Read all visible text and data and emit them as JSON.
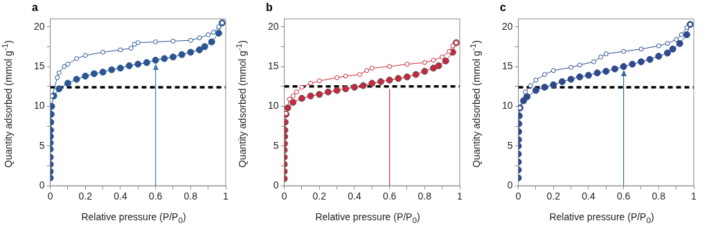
{
  "chart_data": [
    {
      "type": "line",
      "title": "a",
      "xlabel": "Relative pressure (P/P$_{0}$)",
      "ylabel": "Quantity adsorbed (mmol g$^{-1}$)",
      "xlim": [
        0,
        1
      ],
      "ylim": [
        0,
        21
      ],
      "xticks": [
        0,
        {
          "value": 0.1,
          "label": null
        },
        0.2,
        {
          "value": 0.3,
          "label": null
        },
        0.4,
        {
          "value": 0.5,
          "label": null
        },
        0.6,
        {
          "value": 0.7,
          "label": null
        },
        0.8,
        {
          "value": 0.9,
          "label": null
        },
        1
      ],
      "yticks": [
        0,
        {
          "value": 2.5,
          "label": null
        },
        5,
        {
          "value": 7.5,
          "label": null
        },
        10,
        {
          "value": 12.5,
          "label": null
        },
        15,
        {
          "value": 17.5,
          "label": null
        },
        20
      ],
      "marker": "circle",
      "grid": false,
      "legend": false,
      "ref_lines": [
        {
          "axis": "y",
          "value": 12.4,
          "color": "#000000",
          "line_style": "dashed"
        },
        {
          "axis": "x",
          "value": 0.6,
          "color": "#3a7ab8"
        }
      ],
      "series": [
        {
          "color": "#2a5592",
          "x": [
            0,
            0,
            0,
            0,
            0,
            0,
            0.001,
            0.002,
            0.003,
            0.005,
            0.008,
            0.02,
            0.05,
            0.1,
            0.15,
            0.2,
            0.25,
            0.3,
            0.35,
            0.4,
            0.45,
            0.5,
            0.55,
            0.6,
            0.65,
            0.7,
            0.75,
            0.8,
            0.85,
            0.88,
            0.92,
            0.96,
            0.98
          ],
          "values": [
            1,
            1.8,
            2.7,
            3.6,
            4.6,
            5.4,
            6.2,
            7,
            8,
            9,
            10,
            11.3,
            12.2,
            12.9,
            13.4,
            13.8,
            14.1,
            14.3,
            14.6,
            14.8,
            15.1,
            15.3,
            15.5,
            15.8,
            16,
            16.2,
            16.5,
            16.8,
            17.1,
            17.5,
            18.1,
            19.2,
            20.5
          ]
        },
        {
          "color": "#2a5592",
          "x": [
            0.98,
            0.96,
            0.93,
            0.9,
            0.85,
            0.8,
            0.7,
            0.6,
            0.5,
            0.48,
            0.46,
            0.4,
            0.3,
            0.2,
            0.15,
            0.1,
            0.08,
            0.05,
            0.04,
            0.01
          ],
          "values": [
            20.5,
            20,
            19.3,
            19,
            18.6,
            18.3,
            18.2,
            18.1,
            18,
            17.8,
            17.3,
            17.1,
            16.8,
            16.4,
            16,
            15.3,
            15,
            14.2,
            13.6,
            11.3
          ]
        }
      ]
    },
    {
      "type": "line",
      "title": "b",
      "xlabel": "Relative pressure (P/P$_{0}$)",
      "ylabel": "Quantity adsorbed (mmol g$^{-1}$)",
      "xlim": [
        0,
        1
      ],
      "ylim": [
        0,
        21
      ],
      "xticks": [
        0,
        {
          "value": 0.1,
          "label": null
        },
        0.2,
        {
          "value": 0.3,
          "label": null
        },
        0.4,
        {
          "value": 0.5,
          "label": null
        },
        0.6,
        {
          "value": 0.7,
          "label": null
        },
        0.8,
        {
          "value": 0.9,
          "label": null
        },
        1
      ],
      "yticks": [
        0,
        {
          "value": 2.5,
          "label": null
        },
        5,
        {
          "value": 7.5,
          "label": null
        },
        10,
        {
          "value": 12.5,
          "label": null
        },
        15,
        {
          "value": 17.5,
          "label": null
        },
        20
      ],
      "marker": "circle",
      "grid": false,
      "legend": false,
      "ref_lines": [
        {
          "axis": "y",
          "value": 12.5,
          "color": "#000000",
          "line_style": "dashed"
        },
        {
          "axis": "x",
          "value": 0.6,
          "color": "#d8304a"
        }
      ],
      "series": [
        {
          "color": "#c8283c",
          "x": [
            0,
            0,
            0,
            0,
            0,
            0.001,
            0.002,
            0.003,
            0.005,
            0.01,
            0.02,
            0.05,
            0.1,
            0.15,
            0.2,
            0.25,
            0.3,
            0.35,
            0.4,
            0.45,
            0.5,
            0.55,
            0.6,
            0.65,
            0.7,
            0.75,
            0.8,
            0.85,
            0.88,
            0.92,
            0.96,
            0.98
          ],
          "values": [
            0.9,
            1.8,
            2.7,
            3.6,
            4.5,
            5.3,
            6.2,
            7,
            8,
            9,
            9.8,
            10.5,
            11,
            11.3,
            11.5,
            11.8,
            12,
            12.2,
            12.4,
            12.6,
            12.9,
            13.1,
            13.3,
            13.5,
            13.7,
            14,
            14.4,
            14.8,
            15.1,
            15.7,
            16.8,
            18
          ]
        },
        {
          "color": "#c8283c",
          "x": [
            0.98,
            0.96,
            0.94,
            0.9,
            0.85,
            0.8,
            0.7,
            0.6,
            0.5,
            0.47,
            0.43,
            0.35,
            0.3,
            0.2,
            0.15,
            0.1,
            0.07,
            0.05,
            0.03,
            0.01
          ],
          "values": [
            18,
            17.6,
            16.9,
            16.2,
            15.8,
            15.5,
            15.3,
            15,
            14.8,
            14.5,
            14,
            13.8,
            13.6,
            13.2,
            12.9,
            12.4,
            11.8,
            11.3,
            10.9,
            9.1
          ]
        }
      ]
    },
    {
      "type": "line",
      "title": "c",
      "xlabel": "Relative pressure (P/P$_{0}$)",
      "ylabel": "Quantity adsorbed (mmol g$^{-1}$)",
      "xlim": [
        0,
        1
      ],
      "ylim": [
        0,
        21
      ],
      "xticks": [
        0,
        {
          "value": 0.1,
          "label": null
        },
        0.2,
        {
          "value": 0.3,
          "label": null
        },
        0.4,
        {
          "value": 0.5,
          "label": null
        },
        0.6,
        {
          "value": 0.7,
          "label": null
        },
        0.8,
        {
          "value": 0.9,
          "label": null
        },
        1
      ],
      "yticks": [
        0,
        {
          "value": 2.5,
          "label": null
        },
        5,
        {
          "value": 7.5,
          "label": null
        },
        10,
        {
          "value": 12.5,
          "label": null
        },
        15,
        {
          "value": 17.5,
          "label": null
        },
        20
      ],
      "marker": "circle",
      "grid": false,
      "legend": false,
      "ref_lines": [
        {
          "axis": "y",
          "value": 12.4,
          "color": "#000000",
          "line_style": "dashed"
        },
        {
          "axis": "x",
          "value": 0.6,
          "color": "#2e6aa0"
        }
      ],
      "series": [
        {
          "color": "#2c4a8c",
          "x": [
            0,
            0,
            0,
            0,
            0,
            0.001,
            0.002,
            0.003,
            0.005,
            0.01,
            0.03,
            0.05,
            0.1,
            0.15,
            0.2,
            0.25,
            0.3,
            0.35,
            0.4,
            0.45,
            0.5,
            0.55,
            0.6,
            0.65,
            0.7,
            0.75,
            0.8,
            0.85,
            0.88,
            0.92,
            0.96,
            0.98
          ],
          "values": [
            1,
            2,
            3,
            4,
            5,
            5.8,
            6.8,
            7.8,
            8.8,
            9.8,
            10.7,
            11.2,
            12,
            12.4,
            12.7,
            13.1,
            13.4,
            13.7,
            13.9,
            14.2,
            14.4,
            14.7,
            15,
            15.3,
            15.6,
            15.9,
            16.3,
            16.7,
            17.2,
            17.9,
            19,
            20.3
          ]
        },
        {
          "color": "#2c4a8c",
          "x": [
            0.98,
            0.96,
            0.93,
            0.9,
            0.85,
            0.8,
            0.7,
            0.6,
            0.5,
            0.47,
            0.43,
            0.35,
            0.3,
            0.2,
            0.15,
            0.1,
            0.07,
            0.04,
            0.01
          ],
          "values": [
            20.3,
            19.9,
            19,
            18.4,
            17.9,
            17.6,
            17.2,
            16.9,
            16.6,
            16.2,
            15.6,
            15.2,
            14.9,
            14.5,
            14,
            13.3,
            12.6,
            11.8,
            9.8
          ]
        }
      ]
    }
  ]
}
